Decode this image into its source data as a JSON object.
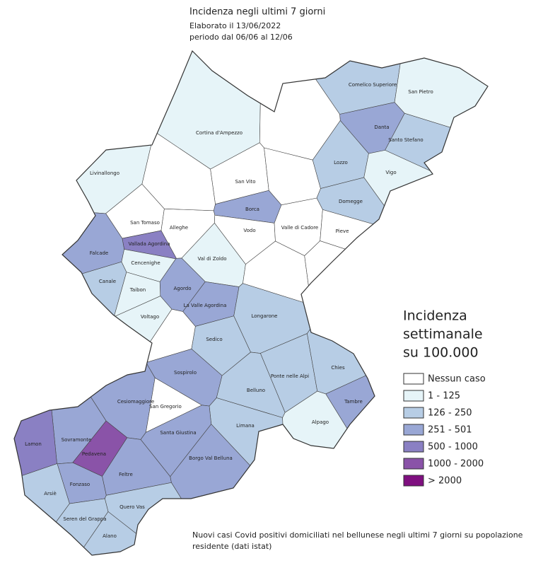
{
  "header": {
    "title": "Incidenza negli ultimi 7 giorni",
    "lines": [
      "Elaborato il 13/06/2022",
      "periodo dal 06/06 al 12/06"
    ]
  },
  "legend": {
    "title": [
      "Incidenza",
      "settimanale",
      "su 100.000"
    ],
    "items": [
      {
        "label": "Nessun caso",
        "color": "#ffffff"
      },
      {
        "label": "1 - 125",
        "color": "#e6f4f8"
      },
      {
        "label": "126 - 250",
        "color": "#b7cde5"
      },
      {
        "label": "251 - 501",
        "color": "#99a7d5"
      },
      {
        "label": "500 - 1000",
        "color": "#8a80c3"
      },
      {
        "label": "1000 - 2000",
        "color": "#8a53a8"
      },
      {
        "label": "> 2000",
        "color": "#7f0f80"
      }
    ]
  },
  "regions": [
    {
      "name": "Comelico Superiore",
      "color": "#b7cde5"
    },
    {
      "name": "San Pietro",
      "color": "#e6f4f8"
    },
    {
      "name": "Danta",
      "color": "#99a7d5"
    },
    {
      "name": "Santo Stefano",
      "color": "#b7cde5"
    },
    {
      "name": "Cortina d'Ampezzo",
      "color": "#e6f4f8"
    },
    {
      "name": "Livinallongo",
      "color": "#e6f4f8"
    },
    {
      "name": "San Vito",
      "color": "#ffffff"
    },
    {
      "name": "Lozzo",
      "color": "#b7cde5"
    },
    {
      "name": "Vigo",
      "color": "#e6f4f8"
    },
    {
      "name": "Domegge",
      "color": "#b7cde5"
    },
    {
      "name": "Borca",
      "color": "#99a7d5"
    },
    {
      "name": "San Tomaso",
      "color": "#ffffff"
    },
    {
      "name": "Alleghe",
      "color": "#ffffff"
    },
    {
      "name": "Vodo",
      "color": "#ffffff"
    },
    {
      "name": "Valle di Cadore",
      "color": "#ffffff"
    },
    {
      "name": "Pieve",
      "color": "#ffffff"
    },
    {
      "name": "Vallada Agordina",
      "color": "#8a80c3"
    },
    {
      "name": "Falcade",
      "color": "#99a7d5"
    },
    {
      "name": "Cencenighe",
      "color": "#e6f4f8"
    },
    {
      "name": "Val di Zoldo",
      "color": "#e6f4f8"
    },
    {
      "name": "Canale",
      "color": "#b7cde5"
    },
    {
      "name": "Agordo",
      "color": "#99a7d5"
    },
    {
      "name": "Taibon",
      "color": "#e6f4f8"
    },
    {
      "name": "La Valle Agordina",
      "color": "#99a7d5"
    },
    {
      "name": "Voltago",
      "color": "#e6f4f8"
    },
    {
      "name": "Longarone",
      "color": "#b7cde5"
    },
    {
      "name": "Sedico",
      "color": "#b7cde5"
    },
    {
      "name": "Ponte nelle Alpi",
      "color": "#b7cde5"
    },
    {
      "name": "Chies",
      "color": "#b7cde5"
    },
    {
      "name": "Sospirolo",
      "color": "#99a7d5"
    },
    {
      "name": "Belluno",
      "color": "#b7cde5"
    },
    {
      "name": "Cesiomaggiore",
      "color": "#99a7d5"
    },
    {
      "name": "San Gregorio",
      "color": "#ffffff"
    },
    {
      "name": "Tambre",
      "color": "#99a7d5"
    },
    {
      "name": "Limana",
      "color": "#b7cde5"
    },
    {
      "name": "Alpago",
      "color": "#e6f4f8"
    },
    {
      "name": "Santa Giustina",
      "color": "#99a7d5"
    },
    {
      "name": "Sovramonte",
      "color": "#99a7d5"
    },
    {
      "name": "Lamon",
      "color": "#8a80c3"
    },
    {
      "name": "Pedavena",
      "color": "#8a53a8"
    },
    {
      "name": "Borgo Val Belluna",
      "color": "#99a7d5"
    },
    {
      "name": "Feltre",
      "color": "#99a7d5"
    },
    {
      "name": "Fonzaso",
      "color": "#99a7d5"
    },
    {
      "name": "Arsiè",
      "color": "#b7cde5"
    },
    {
      "name": "Quero Vas",
      "color": "#b7cde5"
    },
    {
      "name": "Seren del Grappa",
      "color": "#b7cde5"
    },
    {
      "name": "Alano",
      "color": "#b7cde5"
    }
  ],
  "footnote": [
    "Nuovi casi Covid positivi domiciliati nel bellunese negli ultimi 7 giorni su popolazione",
    "residente (dati istat)"
  ]
}
